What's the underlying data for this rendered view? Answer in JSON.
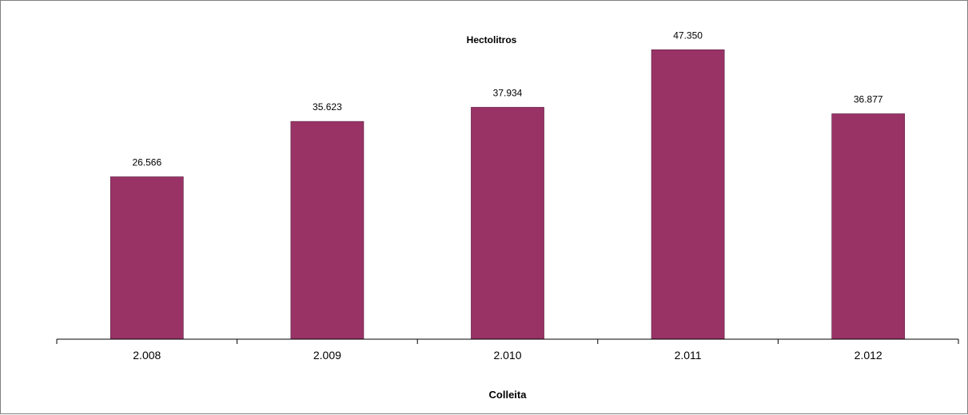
{
  "chart_data": {
    "type": "bar",
    "title": "Hectolitros",
    "xlabel": "Colleita",
    "ylabel": "",
    "categories": [
      "2.008",
      "2.009",
      "2.010",
      "2.011",
      "2.012"
    ],
    "values": [
      26566,
      35623,
      37934,
      47350,
      36877
    ],
    "value_labels": [
      "26.566",
      "35.623",
      "37.934",
      "47.350",
      "36.877"
    ],
    "ylim": [
      0,
      50000
    ],
    "grid": false,
    "legend": "none",
    "bar_color": "#993366"
  }
}
